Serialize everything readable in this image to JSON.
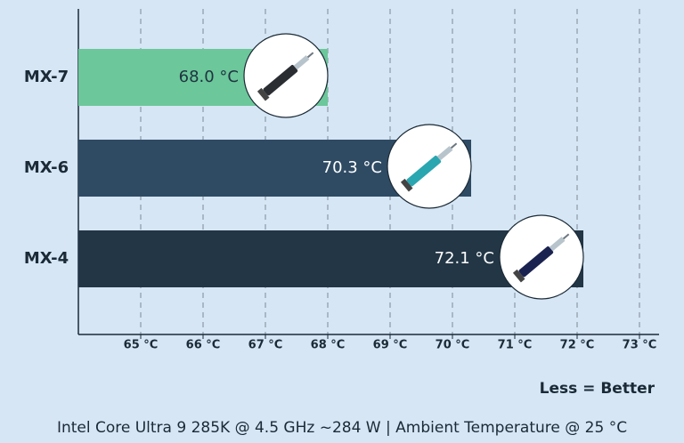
{
  "chart_data": {
    "type": "bar",
    "orientation": "horizontal",
    "categories": [
      "MX-7",
      "MX-6",
      "MX-4"
    ],
    "values": [
      68.0,
      70.3,
      72.1
    ],
    "value_labels": [
      "68.0 °C",
      "70.3 °C",
      "72.1 °C"
    ],
    "colors": [
      "#6cc79a",
      "#2f4b64",
      "#233646"
    ],
    "xlim": [
      64,
      73
    ],
    "xticks": [
      {
        "value": 65,
        "label": "65 °C"
      },
      {
        "value": 66,
        "label": "66 °C"
      },
      {
        "value": 67,
        "label": "67 °C"
      },
      {
        "value": 68,
        "label": "68 °C"
      },
      {
        "value": 69,
        "label": "69 °C"
      },
      {
        "value": 70,
        "label": "70 °C"
      },
      {
        "value": 71,
        "label": "71 °C"
      },
      {
        "value": 72,
        "label": "72 °C"
      },
      {
        "value": 73,
        "label": "73 °C"
      }
    ],
    "grid": true,
    "annotation": "Less = Better",
    "footnote": "Intel Core Ultra 9 285K @ 4.5 GHz ~284 W | Ambient Temperature @ 25 °C"
  }
}
